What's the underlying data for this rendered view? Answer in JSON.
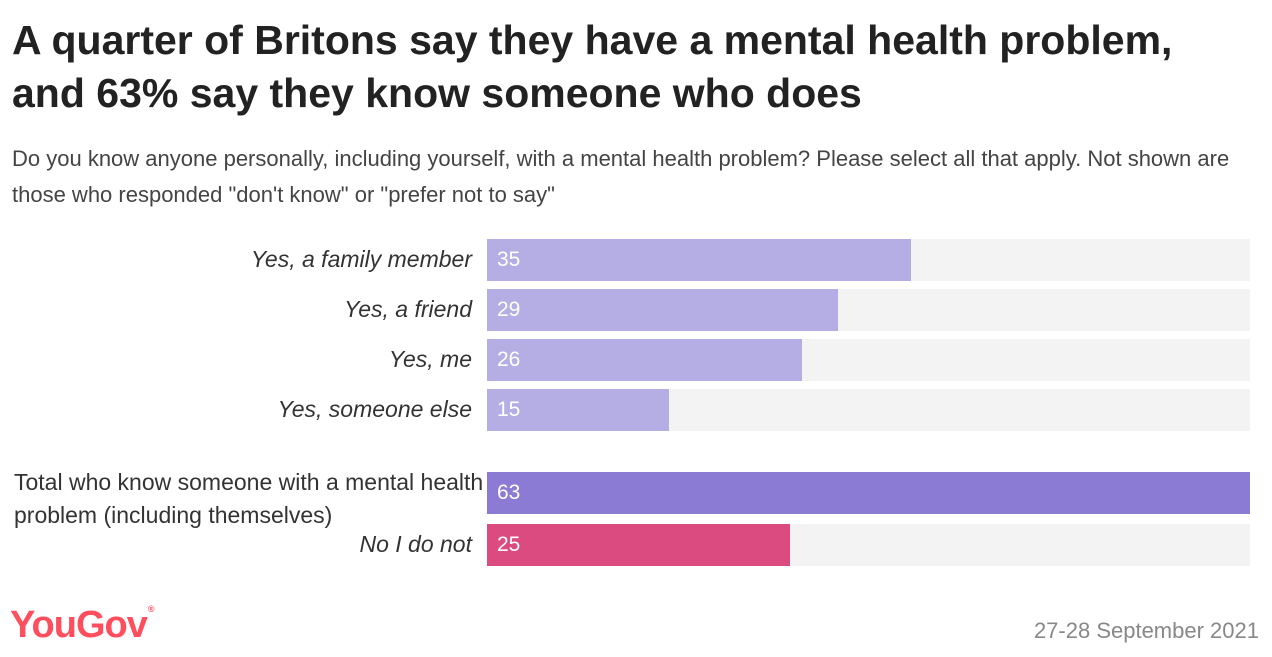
{
  "header": {
    "title": "A quarter of Britons say they have a mental health problem, and 63% say they know someone who does",
    "subtitle": "Do you know anyone personally, including yourself, with a mental health problem? Please select all that apply. Not shown are those who responded \"don't know\" or \"prefer not to say\""
  },
  "footer": {
    "brand": "YouGov",
    "date": "27-28 September 2021"
  },
  "chart_data": {
    "type": "bar",
    "orientation": "horizontal",
    "xlim": [
      0,
      63
    ],
    "grid": false,
    "categories": [
      "Yes, a family member",
      "Yes, a friend",
      "Yes, me",
      "Yes, someone else",
      "Total who know someone with a mental health problem (including themselves)",
      "No I do not"
    ],
    "values": [
      35,
      29,
      26,
      15,
      63,
      25
    ],
    "colors": [
      "#b5aee4",
      "#b5aee4",
      "#b5aee4",
      "#b5aee4",
      "#8b7bd4",
      "#dc4b7f"
    ],
    "italic_labels": [
      true,
      true,
      true,
      true,
      false,
      true
    ],
    "track_color": "#f3f3f3"
  }
}
